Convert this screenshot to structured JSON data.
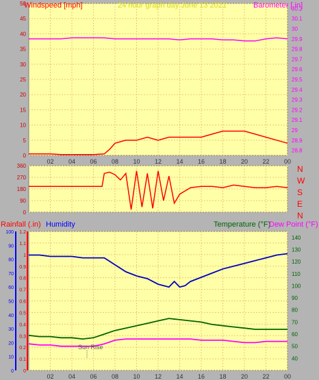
{
  "colors": {
    "background": "#b4b4b4",
    "plot_bg": "#ffffa8",
    "grid": "#e8c878",
    "wind": "#ff0000",
    "gust_blue": "#0000ff",
    "gust_green": "#008000",
    "baro": "#ff00ff",
    "humidity": "#0000c0",
    "temperature": "#006400",
    "dewpoint": "#ff00ff",
    "rain": "#ff0000",
    "title": "#d8d820"
  },
  "chart_data": [
    {
      "type": "line",
      "name": "wind-barometer",
      "title": "24 hour graph day   June 13 2021",
      "ylabel_left": "Windspeed [mph]",
      "ylabel_right": "Barometer [.in]",
      "x_ticks": [
        "02",
        "04",
        "06",
        "08",
        "10",
        "12",
        "14",
        "16",
        "18",
        "20",
        "22",
        "00"
      ],
      "xlim": [
        0,
        24
      ],
      "ylim_left": [
        0,
        50
      ],
      "ylim_right": [
        28.75,
        30.25
      ],
      "y_ticks_left": [
        "50",
        "45",
        "40",
        "35",
        "30",
        "25",
        "20",
        "15",
        "10",
        "5",
        "0"
      ],
      "y_ticks_right": [
        "30.2",
        "30.1",
        "30",
        "29.9",
        "29.8",
        "29.7",
        "29.6",
        "29.5",
        "29.4",
        "29.3",
        "29.2",
        "29.1",
        "29",
        "28.9",
        "28.8"
      ],
      "grid": true,
      "series": [
        {
          "name": "Barometer",
          "x": [
            0,
            1,
            2,
            3,
            4,
            5,
            6,
            7,
            8,
            9,
            10,
            11,
            12,
            13,
            14,
            15,
            16,
            17,
            18,
            19,
            20,
            21,
            22,
            23,
            24
          ],
          "values": [
            29.9,
            29.9,
            29.9,
            29.9,
            29.91,
            29.91,
            29.91,
            29.91,
            29.9,
            29.9,
            29.9,
            29.9,
            29.9,
            29.9,
            29.89,
            29.9,
            29.9,
            29.9,
            29.89,
            29.89,
            29.88,
            29.88,
            29.9,
            29.91,
            29.9
          ]
        },
        {
          "name": "Windspeed",
          "x": [
            0,
            1,
            2,
            3,
            4,
            5,
            6,
            7,
            7.5,
            8,
            9,
            10,
            11,
            12,
            13,
            14,
            15,
            16,
            17,
            18,
            19,
            20,
            21,
            22,
            23,
            24
          ],
          "values": [
            0.5,
            0.5,
            0.5,
            0.3,
            0.3,
            0.3,
            0.3,
            0.5,
            2,
            4,
            5,
            5,
            6,
            5,
            6,
            6,
            6,
            6,
            7,
            8,
            8,
            8,
            7,
            6,
            5,
            4
          ]
        }
      ]
    },
    {
      "type": "line",
      "name": "wind-direction",
      "x_ticks": [],
      "y_ticks_left": [
        "360",
        "270",
        "180",
        "90",
        "0"
      ],
      "ylim": [
        0,
        360
      ],
      "compass_labels": [
        "N",
        "W",
        "S",
        "E",
        "N"
      ],
      "series": [
        {
          "name": "Wind Direction",
          "x": [
            0,
            1,
            2,
            3,
            4,
            5,
            6,
            6.8,
            7,
            7.5,
            8,
            8.5,
            9,
            9.5,
            10,
            10.5,
            11,
            11.5,
            12,
            12.5,
            13,
            13.5,
            14,
            15,
            16,
            17,
            18,
            19,
            20,
            21,
            22,
            23,
            24
          ],
          "values": [
            200,
            200,
            200,
            200,
            200,
            200,
            200,
            200,
            300,
            310,
            290,
            250,
            300,
            20,
            320,
            40,
            300,
            30,
            320,
            90,
            280,
            70,
            140,
            190,
            200,
            200,
            190,
            210,
            200,
            190,
            190,
            200,
            190
          ]
        }
      ]
    },
    {
      "type": "line",
      "name": "humidity-temperature",
      "ylabel_left": "Rainfall (.in)",
      "ylabel_left2": "Humidity",
      "ylabel_right": "Temperature (°F)",
      "ylabel_right2": "Dew Point (°F)",
      "annotation": "Sun Rise",
      "x_ticks": [
        "02",
        "04",
        "06",
        "08",
        "10",
        "12",
        "14",
        "16",
        "18",
        "20",
        "22",
        "00"
      ],
      "xlim": [
        0,
        24
      ],
      "ylim_left": [
        0,
        100
      ],
      "ylim_rain": [
        0,
        1.2
      ],
      "ylim_right": [
        30,
        145
      ],
      "y_ticks_left": [
        "100",
        "90",
        "80",
        "70",
        "60",
        "50",
        "40",
        "30",
        "20",
        "10",
        "0"
      ],
      "y_ticks_rain": [
        "1.2",
        "1.1",
        "1",
        "0.9",
        "0.8",
        "0.7",
        "0.6",
        "0.5",
        "0.4",
        "0.3",
        "0.2",
        "0.1",
        "0"
      ],
      "y_ticks_right": [
        "140",
        "130",
        "120",
        "110",
        "100",
        "90",
        "80",
        "70",
        "60",
        "50",
        "40"
      ],
      "grid": true,
      "series": [
        {
          "name": "Humidity",
          "x": [
            0,
            1,
            2,
            3,
            4,
            5,
            6,
            7,
            8,
            9,
            10,
            11,
            12,
            13,
            13.5,
            14,
            14.5,
            15,
            16,
            17,
            18,
            19,
            20,
            21,
            22,
            23,
            24
          ],
          "values": [
            83,
            83,
            82,
            82,
            82,
            81,
            81,
            81,
            76,
            71,
            68,
            66,
            62,
            60,
            64,
            60,
            61,
            64,
            67,
            70,
            73,
            75,
            77,
            79,
            81,
            83,
            84
          ]
        },
        {
          "name": "Temperature",
          "x": [
            0,
            1,
            2,
            3,
            4,
            5,
            6,
            7,
            8,
            9,
            10,
            11,
            12,
            13,
            14,
            15,
            16,
            17,
            18,
            19,
            20,
            21,
            22,
            23,
            24
          ],
          "values": [
            59,
            58,
            58,
            57,
            57,
            56,
            57,
            60,
            63,
            65,
            67,
            69,
            71,
            73,
            72,
            71,
            70,
            68,
            67,
            66,
            65,
            64,
            64,
            64,
            64
          ]
        },
        {
          "name": "Dew Point",
          "x": [
            0,
            1,
            2,
            3,
            4,
            5,
            6,
            7,
            8,
            9,
            10,
            11,
            12,
            13,
            14,
            15,
            16,
            17,
            18,
            19,
            20,
            21,
            22,
            23,
            24
          ],
          "values": [
            52,
            51,
            51,
            50,
            50,
            50,
            50,
            52,
            55,
            56,
            56,
            56,
            56,
            56,
            56,
            56,
            55,
            55,
            55,
            54,
            53,
            53,
            54,
            54,
            54
          ]
        }
      ]
    }
  ]
}
